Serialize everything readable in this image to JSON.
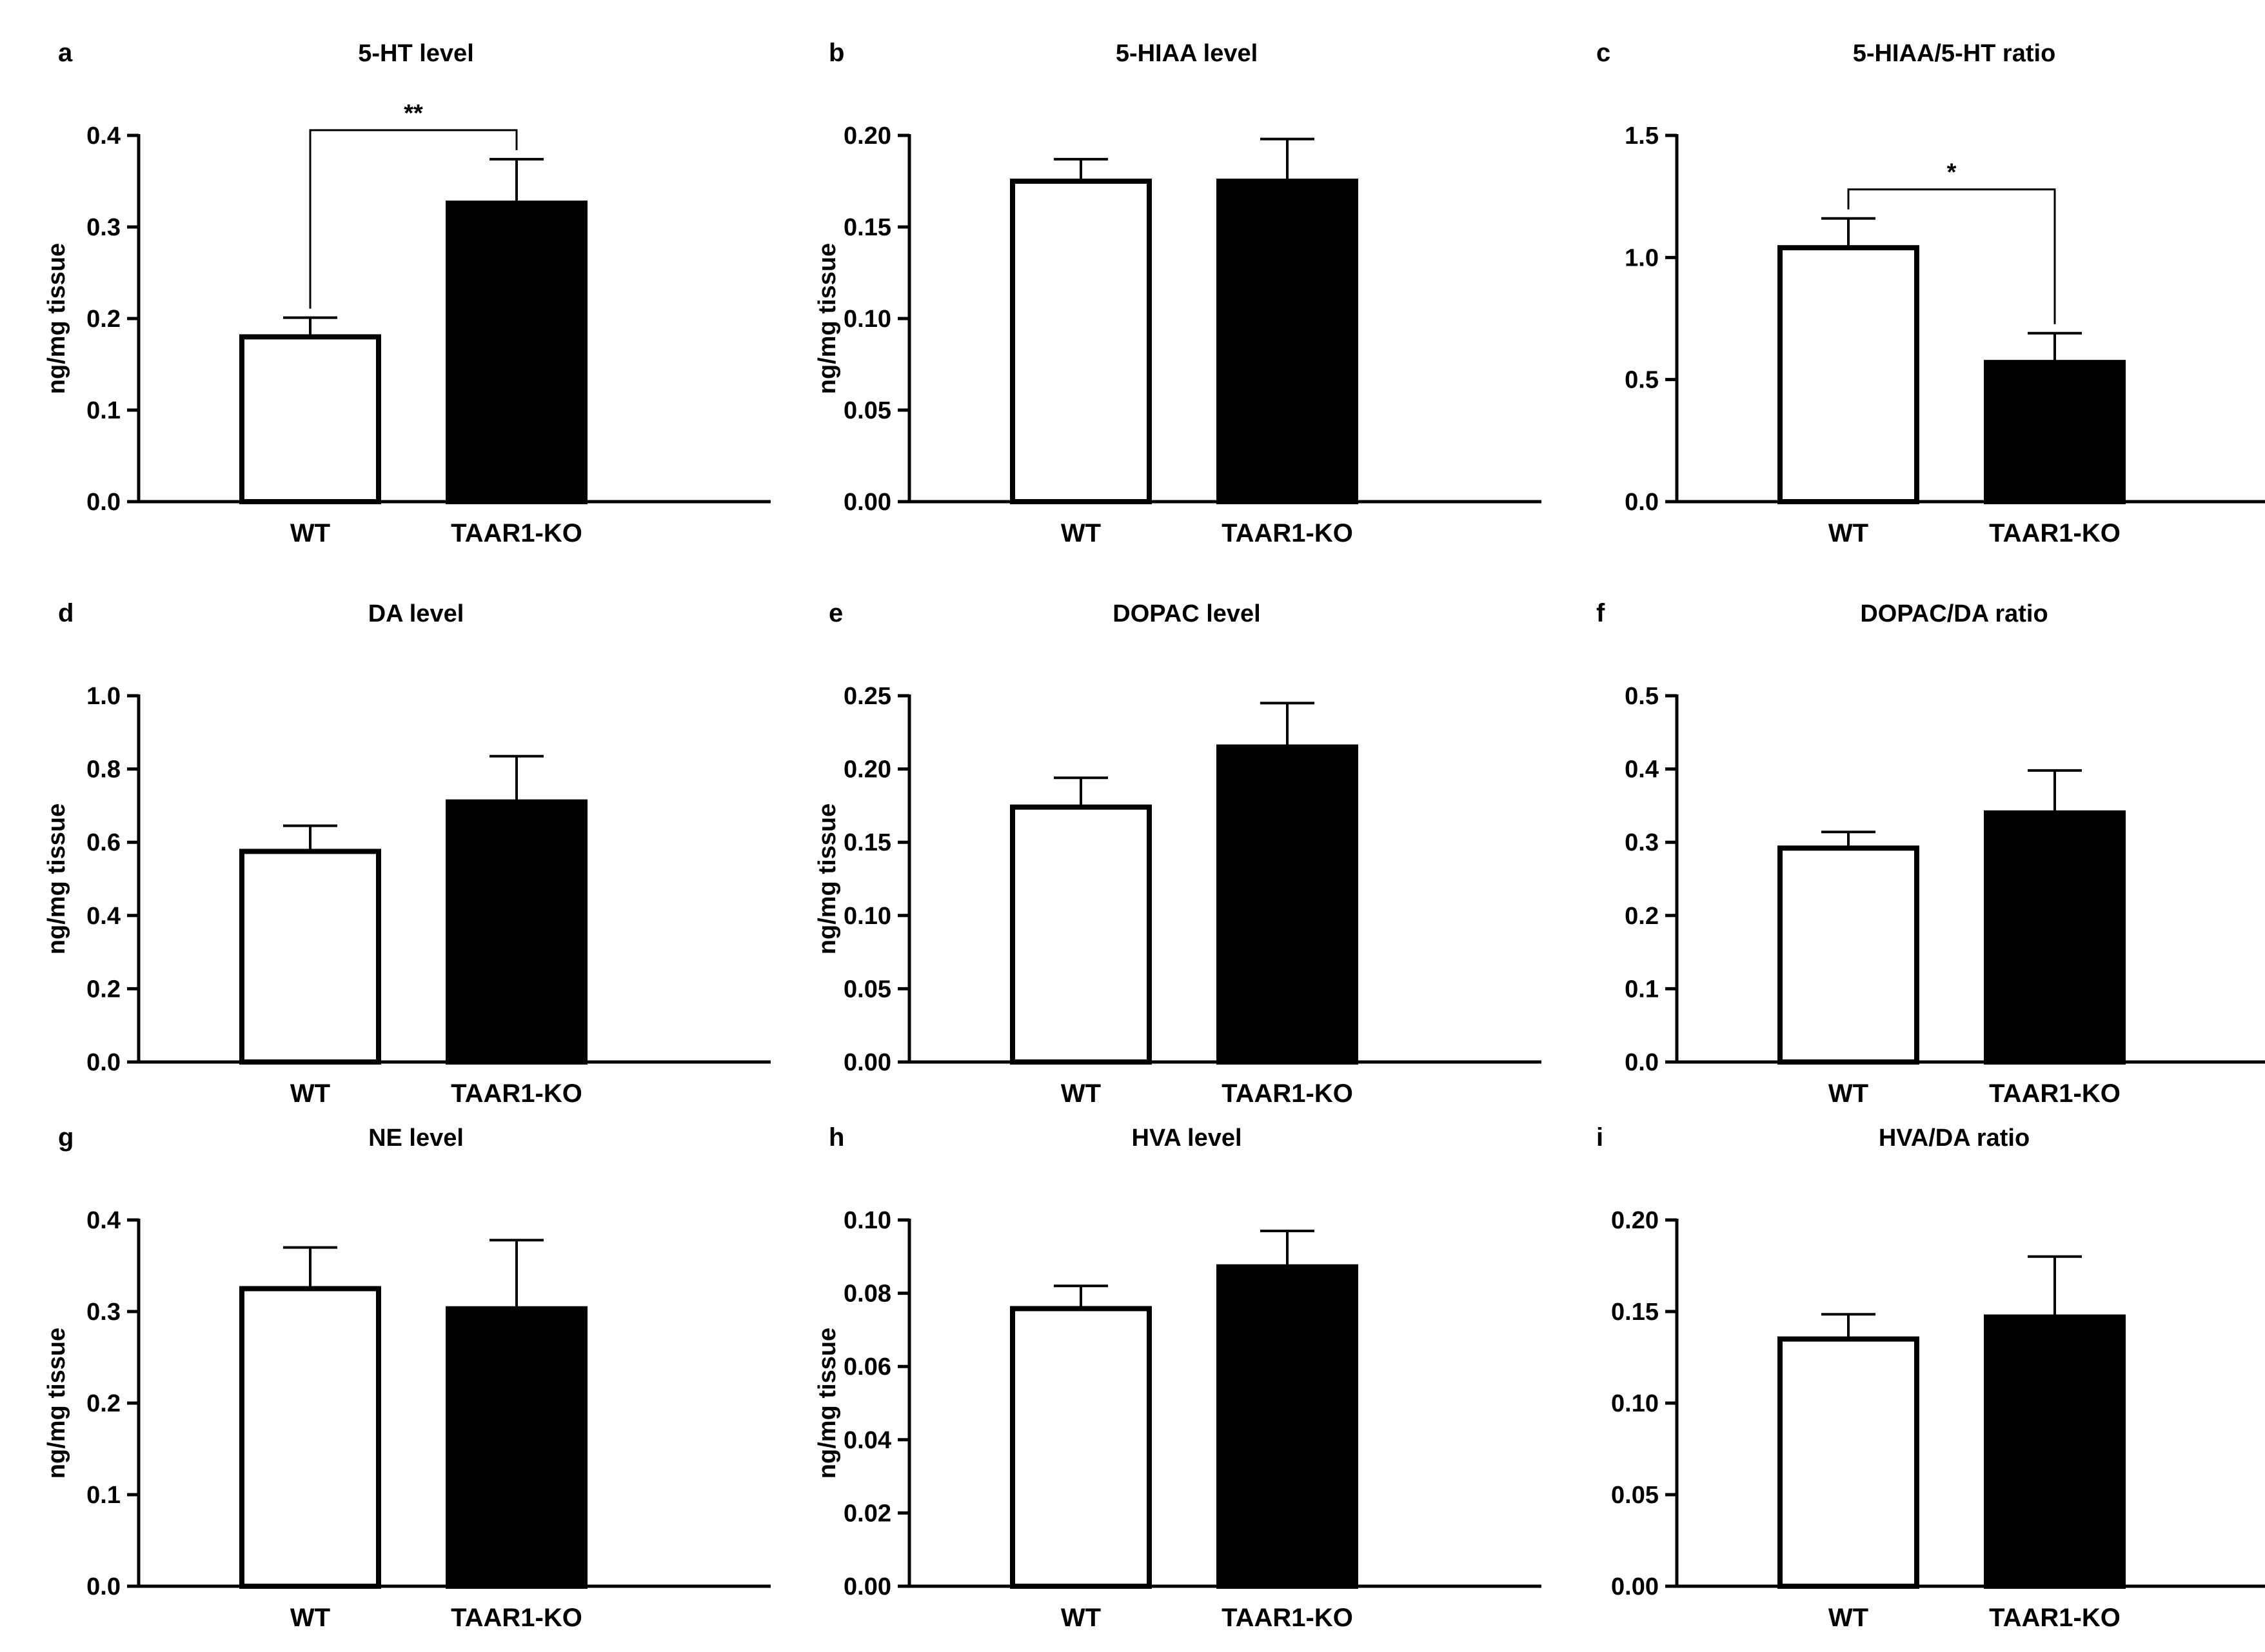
{
  "chart_data": [
    {
      "type": "bar",
      "panel": "a",
      "title": "5-HT level",
      "ylabel": "ng/mg tissue",
      "categories": [
        "WT",
        "TAAR1-KO"
      ],
      "values": [
        0.18,
        0.326
      ],
      "errors": [
        0.021,
        0.048
      ],
      "ylim": [
        0,
        0.4
      ],
      "yticks": [
        "0.0",
        "0.1",
        "0.2",
        "0.3",
        "0.4"
      ],
      "significance": "**"
    },
    {
      "type": "bar",
      "panel": "b",
      "title": "5-HIAA level",
      "ylabel": "ng/mg tissue",
      "categories": [
        "WT",
        "TAAR1-KO"
      ],
      "values": [
        0.175,
        0.175
      ],
      "errors": [
        0.012,
        0.023
      ],
      "ylim": [
        0,
        0.2
      ],
      "yticks": [
        "0.00",
        "0.05",
        "0.10",
        "0.15",
        "0.20"
      ],
      "significance": ""
    },
    {
      "type": "bar",
      "panel": "c",
      "title": "5-HIAA/5-HT ratio",
      "ylabel": "",
      "categories": [
        "WT",
        "TAAR1-KO"
      ],
      "values": [
        1.04,
        0.57
      ],
      "errors": [
        0.12,
        0.12
      ],
      "ylim": [
        0,
        1.5
      ],
      "yticks": [
        "0.0",
        "0.5",
        "1.0",
        "1.5"
      ],
      "significance": "*"
    },
    {
      "type": "bar",
      "panel": "d",
      "title": "DA level",
      "ylabel": "ng/mg tissue",
      "categories": [
        "WT",
        "TAAR1-KO"
      ],
      "values": [
        0.575,
        0.71
      ],
      "errors": [
        0.07,
        0.125
      ],
      "ylim": [
        0,
        1.0
      ],
      "yticks": [
        "0.0",
        "0.2",
        "0.4",
        "0.6",
        "0.8",
        "1.0"
      ],
      "significance": ""
    },
    {
      "type": "bar",
      "panel": "e",
      "title": "DOPAC level",
      "ylabel": "ng/mg tissue",
      "categories": [
        "WT",
        "TAAR1-KO"
      ],
      "values": [
        0.174,
        0.215
      ],
      "errors": [
        0.02,
        0.03
      ],
      "ylim": [
        0,
        0.25
      ],
      "yticks": [
        "0.00",
        "0.05",
        "0.10",
        "0.15",
        "0.20",
        "0.25"
      ],
      "significance": ""
    },
    {
      "type": "bar",
      "panel": "f",
      "title": "DOPAC/DA ratio",
      "ylabel": "",
      "categories": [
        "WT",
        "TAAR1-KO"
      ],
      "values": [
        0.292,
        0.34
      ],
      "errors": [
        0.022,
        0.058
      ],
      "ylim": [
        0,
        0.5
      ],
      "yticks": [
        "0.0",
        "0.1",
        "0.2",
        "0.3",
        "0.4",
        "0.5"
      ],
      "significance": ""
    },
    {
      "type": "bar",
      "panel": "g",
      "title": "NE level",
      "ylabel": "ng/mg tissue",
      "categories": [
        "WT",
        "TAAR1-KO"
      ],
      "values": [
        0.325,
        0.303
      ],
      "errors": [
        0.045,
        0.075
      ],
      "ylim": [
        0,
        0.4
      ],
      "yticks": [
        "0.0",
        "0.1",
        "0.2",
        "0.3",
        "0.4"
      ],
      "significance": ""
    },
    {
      "type": "bar",
      "panel": "h",
      "title": "HVA level",
      "ylabel": "ng/mg tissue",
      "categories": [
        "WT",
        "TAAR1-KO"
      ],
      "values": [
        0.0758,
        0.0872
      ],
      "errors": [
        0.0062,
        0.0098
      ],
      "ylim": [
        0,
        0.1
      ],
      "yticks": [
        "0.00",
        "0.02",
        "0.04",
        "0.06",
        "0.08",
        "0.10"
      ],
      "significance": ""
    },
    {
      "type": "bar",
      "panel": "i",
      "title": "HVA/DA ratio",
      "ylabel": "",
      "categories": [
        "WT",
        "TAAR1-KO"
      ],
      "values": [
        0.135,
        0.147
      ],
      "errors": [
        0.0135,
        0.033
      ],
      "ylim": [
        0,
        0.2
      ],
      "yticks": [
        "0.00",
        "0.05",
        "0.10",
        "0.15",
        "0.20"
      ],
      "significance": ""
    }
  ],
  "colors": {
    "wt_fill": "#ffffff",
    "ko_fill": "#000000",
    "axis": "#000000"
  }
}
